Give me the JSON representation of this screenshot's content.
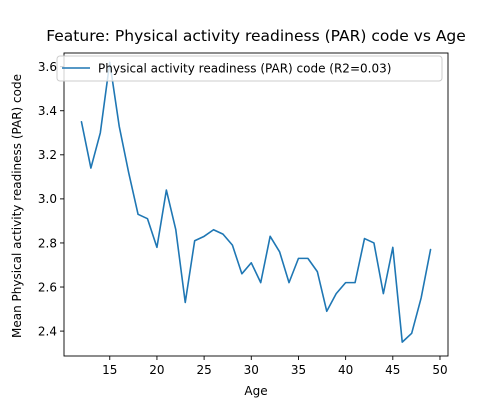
{
  "chart_data": {
    "type": "line",
    "title": "Feature: Physical activity readiness (PAR) code vs Age",
    "xlabel": "Age",
    "ylabel": "Mean Physical activity readiness (PAR) code",
    "xlim": [
      10.15,
      50.85
    ],
    "ylim": [
      2.287,
      3.662
    ],
    "xticks": [
      15,
      20,
      25,
      30,
      35,
      40,
      45,
      50
    ],
    "yticks": [
      2.4,
      2.6,
      2.8,
      3.0,
      3.2,
      3.4,
      3.6
    ],
    "xtick_labels": [
      "15",
      "20",
      "25",
      "30",
      "35",
      "40",
      "45",
      "50"
    ],
    "ytick_labels": [
      "2.4",
      "2.6",
      "2.8",
      "3.0",
      "3.2",
      "3.4",
      "3.6"
    ],
    "grid": false,
    "legend_position": "top-left",
    "series": [
      {
        "name": "Physical activity readiness (PAR) code (R2=0.03)",
        "color": "#1f77b4",
        "x": [
          12,
          13,
          14,
          15,
          16,
          17,
          18,
          19,
          20,
          21,
          22,
          23,
          24,
          25,
          26,
          27,
          28,
          29,
          30,
          31,
          32,
          33,
          34,
          35,
          36,
          37,
          38,
          39,
          40,
          41,
          42,
          43,
          44,
          45,
          46,
          47,
          48,
          49
        ],
        "y": [
          3.35,
          3.14,
          3.3,
          3.62,
          3.33,
          3.12,
          2.93,
          2.91,
          2.78,
          3.04,
          2.86,
          2.53,
          2.81,
          2.83,
          2.86,
          2.84,
          2.79,
          2.66,
          2.71,
          2.62,
          2.83,
          2.76,
          2.62,
          2.73,
          2.73,
          2.67,
          2.49,
          2.57,
          2.62,
          2.62,
          2.82,
          2.8,
          2.57,
          2.78,
          2.35,
          2.39,
          2.55,
          2.77
        ]
      }
    ]
  }
}
